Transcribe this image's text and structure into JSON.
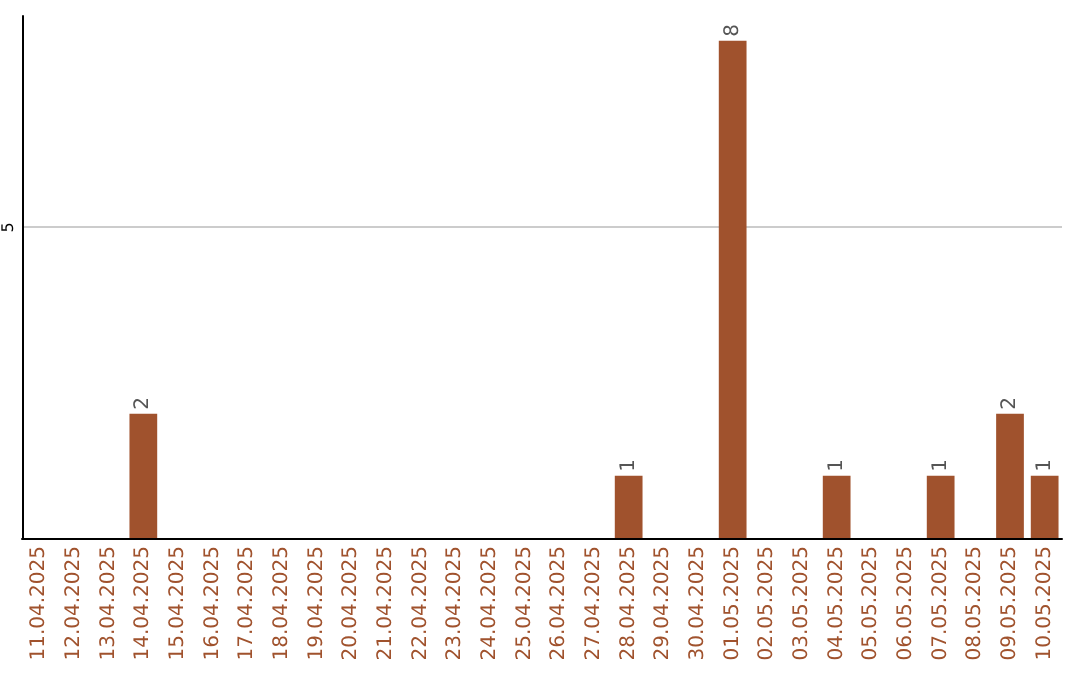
{
  "chart_data": {
    "type": "bar",
    "categories": [
      "11.04.2025",
      "12.04.2025",
      "13.04.2025",
      "14.04.2025",
      "15.04.2025",
      "16.04.2025",
      "17.04.2025",
      "18.04.2025",
      "19.04.2025",
      "20.04.2025",
      "21.04.2025",
      "22.04.2025",
      "23.04.2025",
      "24.04.2025",
      "25.04.2025",
      "26.04.2025",
      "27.04.2025",
      "28.04.2025",
      "29.04.2025",
      "30.04.2025",
      "01.05.2025",
      "02.05.2025",
      "03.05.2025",
      "04.05.2025",
      "05.05.2025",
      "06.05.2025",
      "07.05.2025",
      "08.05.2025",
      "09.05.2025",
      "10.05.2025"
    ],
    "values": [
      0,
      0,
      0,
      2,
      0,
      0,
      0,
      0,
      0,
      0,
      0,
      0,
      0,
      0,
      0,
      0,
      0,
      1,
      0,
      0,
      8,
      0,
      0,
      1,
      0,
      0,
      1,
      0,
      2,
      1
    ],
    "value_labels": [
      null,
      null,
      null,
      "2",
      null,
      null,
      null,
      null,
      null,
      null,
      null,
      null,
      null,
      null,
      null,
      null,
      null,
      "1",
      null,
      null,
      "8",
      null,
      null,
      "1",
      null,
      null,
      "1",
      null,
      "2",
      "1"
    ],
    "color": "#a0522d",
    "ylim": [
      0,
      8.4
    ],
    "yticks": [
      {
        "value": 0,
        "label": null
      },
      5
    ],
    "grid": "y"
  }
}
